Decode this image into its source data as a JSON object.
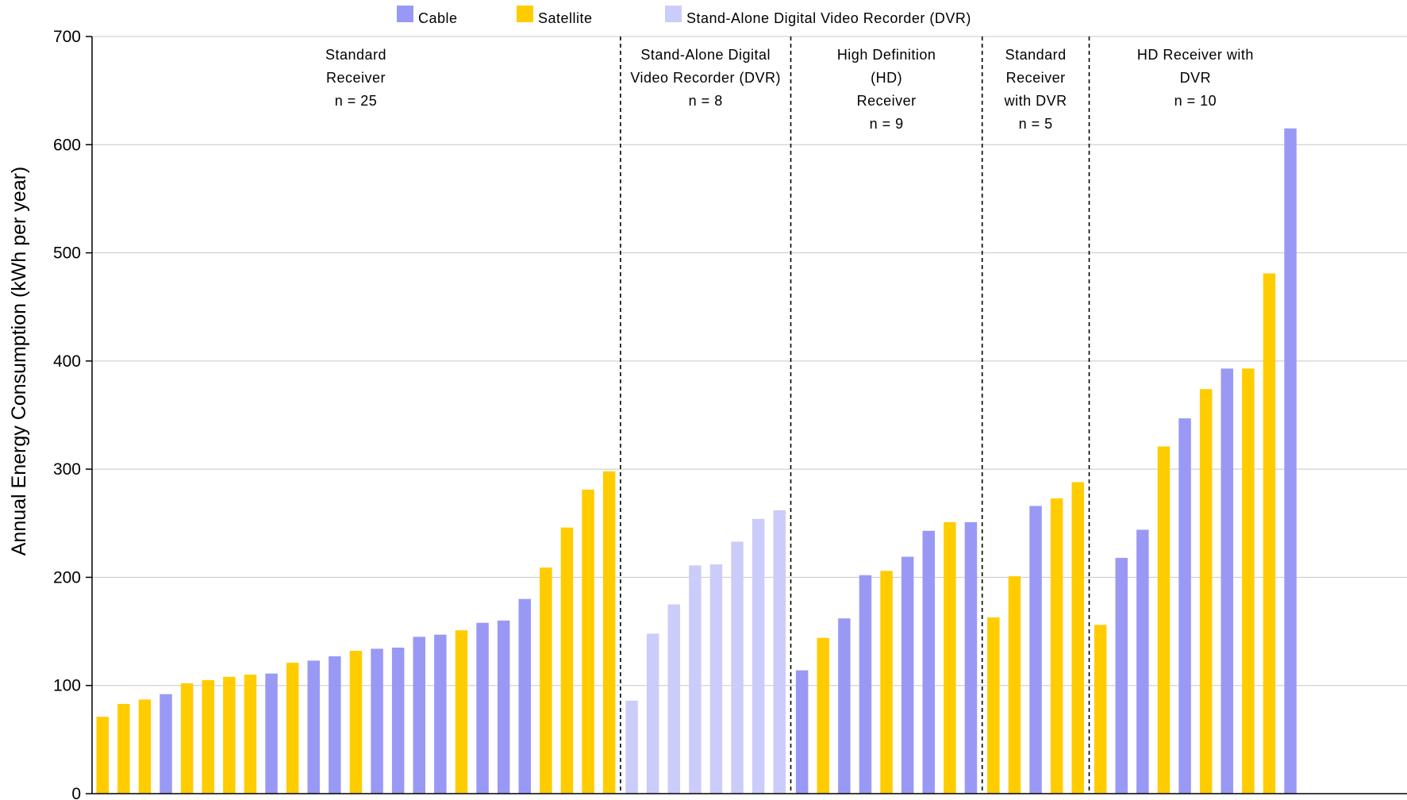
{
  "chart_data": {
    "type": "bar",
    "ylabel": "Annual Energy Consumption (kWh per year)",
    "ylim": [
      0,
      700
    ],
    "yticks": [
      0,
      100,
      200,
      300,
      400,
      500,
      600,
      700
    ],
    "grid": true,
    "legend_placement": "top",
    "colors": {
      "Cable": "#9999f5",
      "Satellite": "#ffcc00",
      "DVR": "#ccccfa"
    },
    "legend": [
      {
        "key": "Cable",
        "label": "Cable"
      },
      {
        "key": "Satellite",
        "label": "Satellite"
      },
      {
        "key": "DVR",
        "label": "Stand-Alone Digital Video Recorder (DVR)"
      }
    ],
    "groups": [
      {
        "label_lines": [
          "Standard",
          "Receiver",
          "n = 25"
        ],
        "bars": [
          {
            "type": "Satellite",
            "value": 71
          },
          {
            "type": "Satellite",
            "value": 83
          },
          {
            "type": "Satellite",
            "value": 87
          },
          {
            "type": "Cable",
            "value": 92
          },
          {
            "type": "Satellite",
            "value": 102
          },
          {
            "type": "Satellite",
            "value": 105
          },
          {
            "type": "Satellite",
            "value": 108
          },
          {
            "type": "Satellite",
            "value": 110
          },
          {
            "type": "Cable",
            "value": 111
          },
          {
            "type": "Satellite",
            "value": 121
          },
          {
            "type": "Cable",
            "value": 123
          },
          {
            "type": "Cable",
            "value": 127
          },
          {
            "type": "Satellite",
            "value": 132
          },
          {
            "type": "Cable",
            "value": 134
          },
          {
            "type": "Cable",
            "value": 135
          },
          {
            "type": "Cable",
            "value": 145
          },
          {
            "type": "Cable",
            "value": 147
          },
          {
            "type": "Satellite",
            "value": 151
          },
          {
            "type": "Cable",
            "value": 158
          },
          {
            "type": "Cable",
            "value": 160
          },
          {
            "type": "Cable",
            "value": 180
          },
          {
            "type": "Satellite",
            "value": 209
          },
          {
            "type": "Satellite",
            "value": 246
          },
          {
            "type": "Satellite",
            "value": 281
          },
          {
            "type": "Satellite",
            "value": 298
          }
        ]
      },
      {
        "label_lines": [
          "Stand-Alone Digital",
          "Video Recorder (DVR)",
          "n = 8"
        ],
        "bars": [
          {
            "type": "DVR",
            "value": 86
          },
          {
            "type": "DVR",
            "value": 148
          },
          {
            "type": "DVR",
            "value": 175
          },
          {
            "type": "DVR",
            "value": 211
          },
          {
            "type": "DVR",
            "value": 212
          },
          {
            "type": "DVR",
            "value": 233
          },
          {
            "type": "DVR",
            "value": 254
          },
          {
            "type": "DVR",
            "value": 262
          }
        ]
      },
      {
        "label_lines": [
          "High Definition",
          "(HD)",
          "Receiver",
          "n = 9"
        ],
        "bars": [
          {
            "type": "Cable",
            "value": 114
          },
          {
            "type": "Satellite",
            "value": 144
          },
          {
            "type": "Cable",
            "value": 162
          },
          {
            "type": "Cable",
            "value": 202
          },
          {
            "type": "Satellite",
            "value": 206
          },
          {
            "type": "Cable",
            "value": 219
          },
          {
            "type": "Cable",
            "value": 243
          },
          {
            "type": "Satellite",
            "value": 251
          },
          {
            "type": "Cable",
            "value": 251
          }
        ]
      },
      {
        "label_lines": [
          "Standard",
          "Receiver",
          "with DVR",
          "n = 5"
        ],
        "bars": [
          {
            "type": "Satellite",
            "value": 163
          },
          {
            "type": "Satellite",
            "value": 201
          },
          {
            "type": "Cable",
            "value": 266
          },
          {
            "type": "Satellite",
            "value": 273
          },
          {
            "type": "Satellite",
            "value": 288
          }
        ]
      },
      {
        "label_lines": [
          "HD Receiver with",
          "DVR",
          "n = 10"
        ],
        "bars": [
          {
            "type": "Satellite",
            "value": 156
          },
          {
            "type": "Cable",
            "value": 218
          },
          {
            "type": "Cable",
            "value": 244
          },
          {
            "type": "Satellite",
            "value": 321
          },
          {
            "type": "Cable",
            "value": 347
          },
          {
            "type": "Satellite",
            "value": 374
          },
          {
            "type": "Cable",
            "value": 393
          },
          {
            "type": "Satellite",
            "value": 393
          },
          {
            "type": "Satellite",
            "value": 481
          },
          {
            "type": "Cable",
            "value": 615
          }
        ]
      }
    ]
  }
}
